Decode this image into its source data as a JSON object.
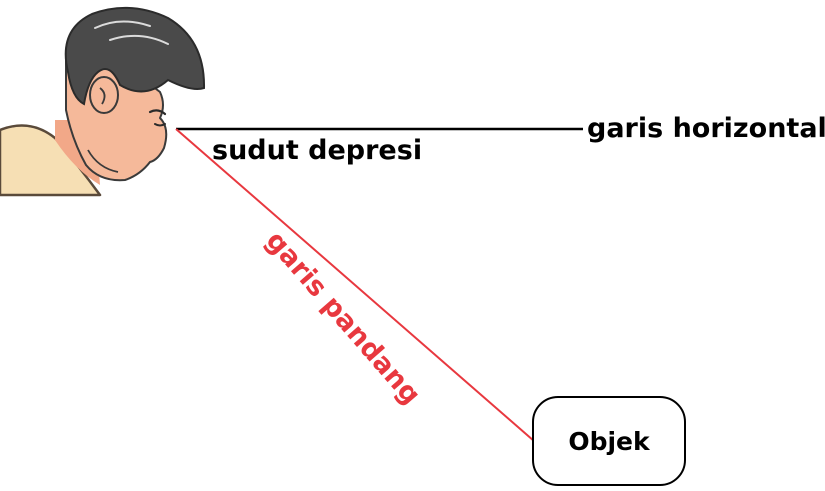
{
  "labels": {
    "horizontal_line": "garis horizontal",
    "depression_angle": "sudut depresi",
    "line_of_sight": "garis pandang",
    "object": "Objek"
  },
  "colors": {
    "horizontal_line": "#000000",
    "line_of_sight": "#e8383f",
    "skin": "#f5b99a",
    "hair": "#4a4a4a",
    "shirt": "#f6dfb4"
  },
  "illustration": {
    "observer": "man-looking-down-icon"
  }
}
